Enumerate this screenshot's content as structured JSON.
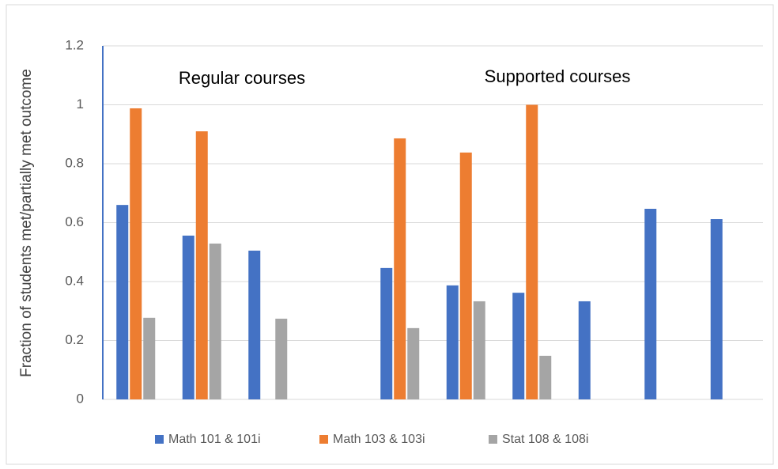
{
  "chart_data": {
    "type": "bar",
    "ylabel": "Fraction of students met/partially met outcome",
    "annotations": [
      "Regular courses",
      "Supported courses"
    ],
    "categories": [
      null,
      null,
      null,
      null,
      null,
      null,
      null,
      null,
      null,
      null
    ],
    "series": [
      {
        "name": "Math 101 & 101i",
        "color": "#4472c4",
        "values": [
          0.66,
          0.556,
          0.505,
          null,
          0.446,
          0.387,
          0.362,
          0.333,
          0.647,
          0.612
        ]
      },
      {
        "name": "Math 103 & 103i",
        "color": "#ed7d31",
        "values": [
          0.988,
          0.91,
          null,
          null,
          0.886,
          0.838,
          1.0,
          null,
          null,
          null
        ]
      },
      {
        "name": "Stat 108 & 108i",
        "color": "#a5a5a5",
        "values": [
          0.277,
          0.529,
          0.274,
          null,
          0.242,
          0.333,
          0.148,
          null,
          null,
          null
        ]
      }
    ],
    "ylim": [
      0,
      1.2
    ],
    "yticks": [
      0,
      0.2,
      0.4,
      0.6,
      0.8,
      1,
      1.2
    ],
    "grid": true
  }
}
